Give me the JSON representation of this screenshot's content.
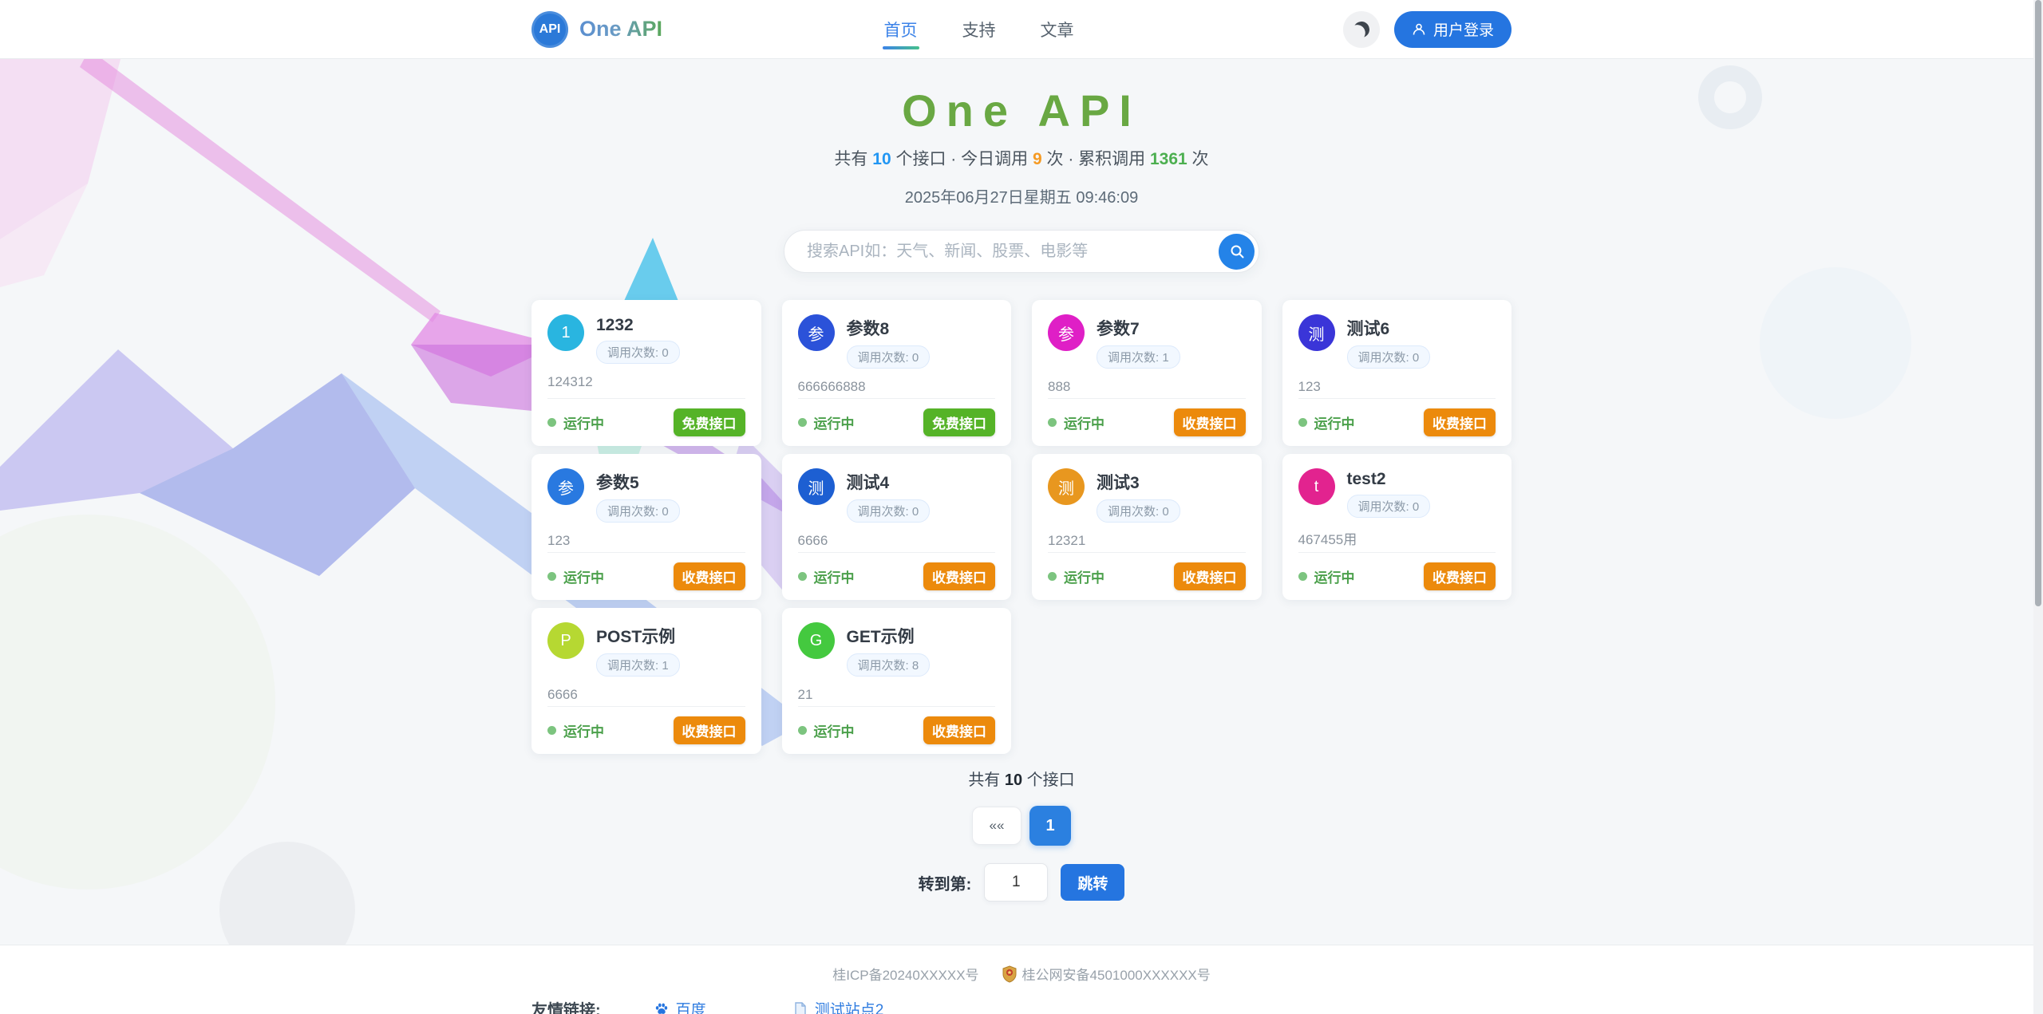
{
  "header": {
    "logo_text": "API",
    "brand": "One API",
    "nav": [
      {
        "label": "首页",
        "active": true
      },
      {
        "label": "支持",
        "active": false
      },
      {
        "label": "文章",
        "active": false
      }
    ],
    "login_label": "用户登录"
  },
  "hero": {
    "title": "One API",
    "stats": {
      "part1": "共有 ",
      "total_apis": "10",
      "part2": " 个接口 · 今日调用 ",
      "today_calls": "9",
      "part3": " 次 · 累积调用 ",
      "total_calls": "1361",
      "part4": " 次"
    },
    "datetime": "2025年06月27日星期五 09:46:09"
  },
  "search": {
    "placeholder": "搜索API如：天气、新闻、股票、电影等"
  },
  "cards": [
    {
      "avatar_text": "1",
      "avatar_color": "#29b5e0",
      "title": "1232",
      "calls": "调用次数: 0",
      "desc": "124312",
      "status": "运行中",
      "badge": "免费接口",
      "badge_type": "free"
    },
    {
      "avatar_text": "参",
      "avatar_color": "#2b52d9",
      "title": "参数8",
      "calls": "调用次数: 0",
      "desc": "666666888",
      "status": "运行中",
      "badge": "免费接口",
      "badge_type": "free"
    },
    {
      "avatar_text": "参",
      "avatar_color": "#df1fc6",
      "title": "参数7",
      "calls": "调用次数: 1",
      "desc": "888",
      "status": "运行中",
      "badge": "收费接口",
      "badge_type": "paid"
    },
    {
      "avatar_text": "测",
      "avatar_color": "#3a35d8",
      "title": "测试6",
      "calls": "调用次数: 0",
      "desc": "123",
      "status": "运行中",
      "badge": "收费接口",
      "badge_type": "paid"
    },
    {
      "avatar_text": "参",
      "avatar_color": "#2979e0",
      "title": "参数5",
      "calls": "调用次数: 0",
      "desc": "123",
      "status": "运行中",
      "badge": "收费接口",
      "badge_type": "paid"
    },
    {
      "avatar_text": "测",
      "avatar_color": "#1d5fd2",
      "title": "测试4",
      "calls": "调用次数: 0",
      "desc": "6666",
      "status": "运行中",
      "badge": "收费接口",
      "badge_type": "paid"
    },
    {
      "avatar_text": "测",
      "avatar_color": "#e8971f",
      "title": "测试3",
      "calls": "调用次数: 0",
      "desc": "12321",
      "status": "运行中",
      "badge": "收费接口",
      "badge_type": "paid"
    },
    {
      "avatar_text": "t",
      "avatar_color": "#e2238f",
      "title": "test2",
      "calls": "调用次数: 0",
      "desc": "467455用",
      "status": "运行中",
      "badge": "收费接口",
      "badge_type": "paid"
    },
    {
      "avatar_text": "P",
      "avatar_color": "#b6d832",
      "title": "POST示例",
      "calls": "调用次数: 1",
      "desc": "6666",
      "status": "运行中",
      "badge": "收费接口",
      "badge_type": "paid"
    },
    {
      "avatar_text": "G",
      "avatar_color": "#44c93f",
      "title": "GET示例",
      "calls": "调用次数: 8",
      "desc": "21",
      "status": "运行中",
      "badge": "收费接口",
      "badge_type": "paid"
    }
  ],
  "summary": {
    "part1": "共有 ",
    "count": "10",
    "part2": " 个接口"
  },
  "pagination": {
    "first_label": "««",
    "page1_label": "1"
  },
  "jumper": {
    "label": "转到第:",
    "value": "1",
    "button_label": "跳转"
  },
  "footer": {
    "icp": "桂ICP备20240XXXXX号",
    "police": "桂公网安备4501000XXXXXX号",
    "links_label": "友情链接:",
    "links": [
      {
        "label": "百度",
        "icon": "paw-icon"
      },
      {
        "label": "测试站点2",
        "icon": "doc-icon"
      }
    ]
  },
  "colors": {
    "accent_blue": "#2575e0",
    "hero_green": "#69a843",
    "stat_blue": "#2196f3",
    "stat_orange": "#f59a23",
    "stat_green": "#4caf50",
    "badge_free": "#55b327",
    "badge_paid": "#ec8a0c",
    "status_green": "#4ba04b"
  }
}
